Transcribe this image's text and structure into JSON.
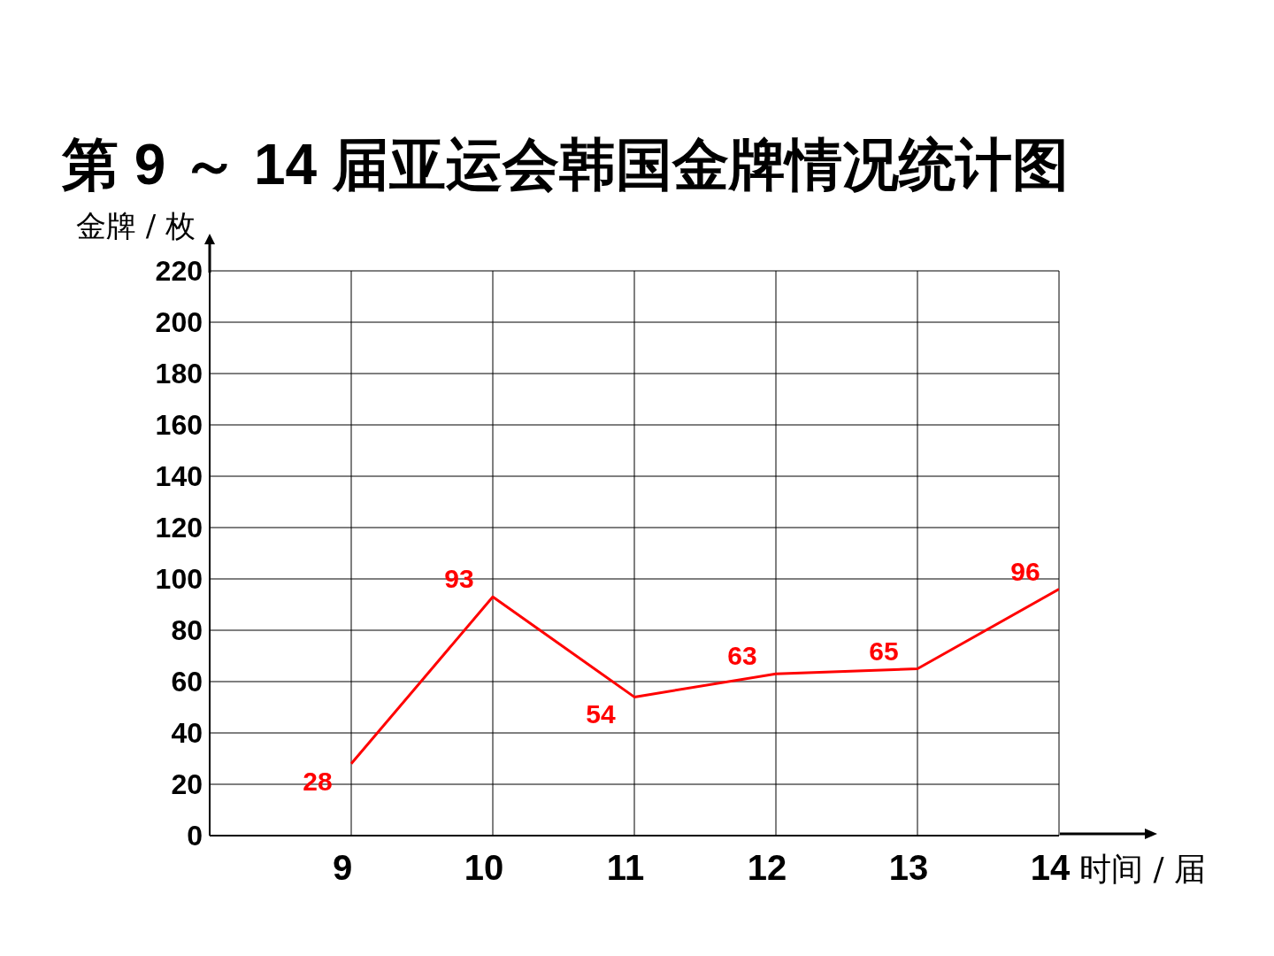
{
  "chart_data": {
    "type": "line",
    "title": "第 9 ～ 14 届亚运会韩国金牌情况统计图",
    "xlabel": "时间 / 届",
    "ylabel": "金牌 / 枚",
    "x": [
      9,
      10,
      11,
      12,
      13,
      14
    ],
    "series": [
      {
        "color": "#ff0000",
        "values": [
          28,
          93,
          54,
          63,
          65,
          96
        ]
      }
    ],
    "xlim": [
      8,
      14
    ],
    "xticks": [
      9,
      10,
      11,
      12,
      13,
      14
    ],
    "ylim": [
      0,
      220
    ],
    "yticks": [
      0,
      20,
      40,
      60,
      80,
      100,
      120,
      140,
      160,
      180,
      200,
      220
    ],
    "grid": true,
    "data_labels": true
  }
}
